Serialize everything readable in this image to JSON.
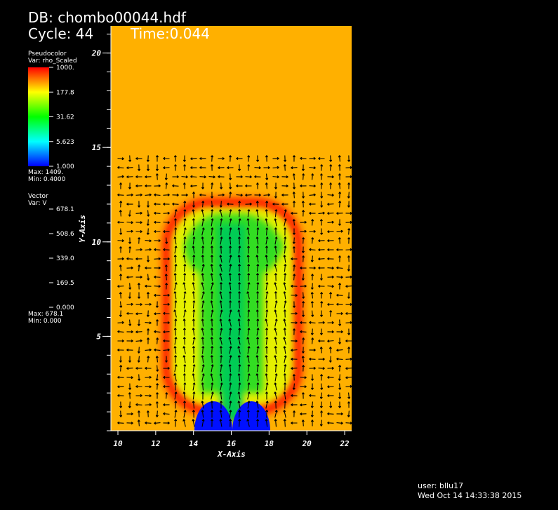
{
  "header": {
    "database": "DB: chombo00044.hdf",
    "cycle": "Cycle: 44",
    "time": "Time:0.044"
  },
  "legend": {
    "pseudocolor": {
      "title": "Pseudocolor",
      "variable": "Var: rho_Scaled",
      "labels": [
        "1000.",
        "177.8",
        "31.62",
        "5.623",
        "1.000"
      ],
      "max": "Max:  1409.",
      "min": "Min:  0.4000"
    },
    "vector": {
      "title": "Vector",
      "variable": "Var: V",
      "labels": [
        "678.1",
        "508.6",
        "339.0",
        "169.5",
        "0.000"
      ],
      "max": "Max:  678.1",
      "min": "Min:  0.000"
    }
  },
  "axes": {
    "x_title": "X-Axis",
    "y_title": "Y-Axis",
    "x_ticks": [
      10,
      12,
      14,
      16,
      18,
      20,
      22
    ],
    "y_ticks": [
      5,
      10,
      15,
      20
    ]
  },
  "footer": {
    "user": "user: bllu17",
    "date": "Wed Oct 14 14:33:38 2015"
  }
}
